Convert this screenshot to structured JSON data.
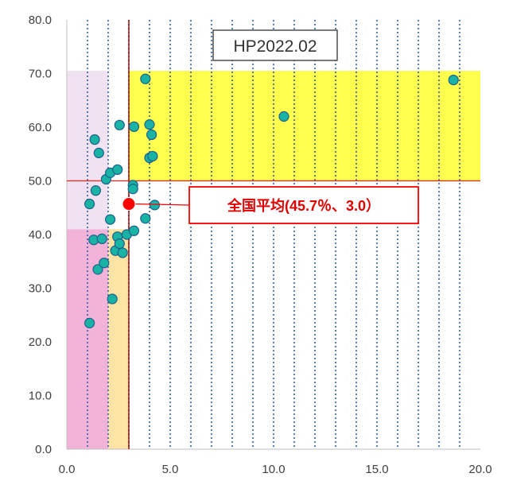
{
  "chart_data": {
    "type": "scatter",
    "title": "HP2022.02",
    "xlabel": "",
    "ylabel": "",
    "xlim": [
      0,
      20
    ],
    "ylim": [
      0,
      80
    ],
    "x_ticks": [
      "0.0",
      "5.0",
      "10.0",
      "15.0",
      "20.0"
    ],
    "y_ticks": [
      "0.0",
      "10.0",
      "20.0",
      "30.0",
      "40.0",
      "50.0",
      "60.0",
      "70.0",
      "80.0"
    ],
    "grid": "vertical dotted",
    "reference_lines": {
      "x": 3.0,
      "y": 50.0
    },
    "regions": [
      {
        "x": [
          0,
          2.0
        ],
        "y": [
          0,
          41
        ],
        "color": "#f2b3d9"
      },
      {
        "x": [
          2.0,
          3.0
        ],
        "y": [
          0,
          41
        ],
        "color": "#fde3a4"
      },
      {
        "x": [
          0,
          2.0
        ],
        "y": [
          41,
          70.5
        ],
        "color": "#f1e2f1"
      },
      {
        "x": [
          3.0,
          20.0
        ],
        "y": [
          50,
          70.5
        ],
        "color": "#ffff4d"
      }
    ],
    "series": [
      {
        "color": "#19b3a6",
        "points": [
          {
            "x": 1.1,
            "y": 23.5
          },
          {
            "x": 1.1,
            "y": 45.7
          },
          {
            "x": 1.3,
            "y": 39.0
          },
          {
            "x": 1.35,
            "y": 57.7
          },
          {
            "x": 1.4,
            "y": 48.2
          },
          {
            "x": 1.5,
            "y": 33.5
          },
          {
            "x": 1.55,
            "y": 55.2
          },
          {
            "x": 1.7,
            "y": 39.2
          },
          {
            "x": 1.8,
            "y": 34.7
          },
          {
            "x": 1.9,
            "y": 50.3
          },
          {
            "x": 2.1,
            "y": 51.5
          },
          {
            "x": 2.1,
            "y": 42.8
          },
          {
            "x": 2.2,
            "y": 28.0
          },
          {
            "x": 2.35,
            "y": 37.0
          },
          {
            "x": 2.45,
            "y": 52.1
          },
          {
            "x": 2.45,
            "y": 39.6
          },
          {
            "x": 2.55,
            "y": 38.3
          },
          {
            "x": 2.55,
            "y": 60.4
          },
          {
            "x": 2.7,
            "y": 36.6
          },
          {
            "x": 2.9,
            "y": 40.0
          },
          {
            "x": 3.2,
            "y": 49.2
          },
          {
            "x": 3.2,
            "y": 48.5
          },
          {
            "x": 3.25,
            "y": 60.1
          },
          {
            "x": 3.25,
            "y": 40.7
          },
          {
            "x": 3.8,
            "y": 69.0
          },
          {
            "x": 3.8,
            "y": 43.0
          },
          {
            "x": 4.0,
            "y": 60.5
          },
          {
            "x": 4.0,
            "y": 54.3
          },
          {
            "x": 4.1,
            "y": 58.6
          },
          {
            "x": 4.15,
            "y": 54.6
          },
          {
            "x": 4.25,
            "y": 45.5
          },
          {
            "x": 10.5,
            "y": 62.0
          },
          {
            "x": 18.7,
            "y": 68.8
          }
        ]
      }
    ],
    "highlight": {
      "label": "全国平均(45.7％、3.0）",
      "x": 3.0,
      "y": 45.7,
      "color": "#ff0000"
    }
  }
}
